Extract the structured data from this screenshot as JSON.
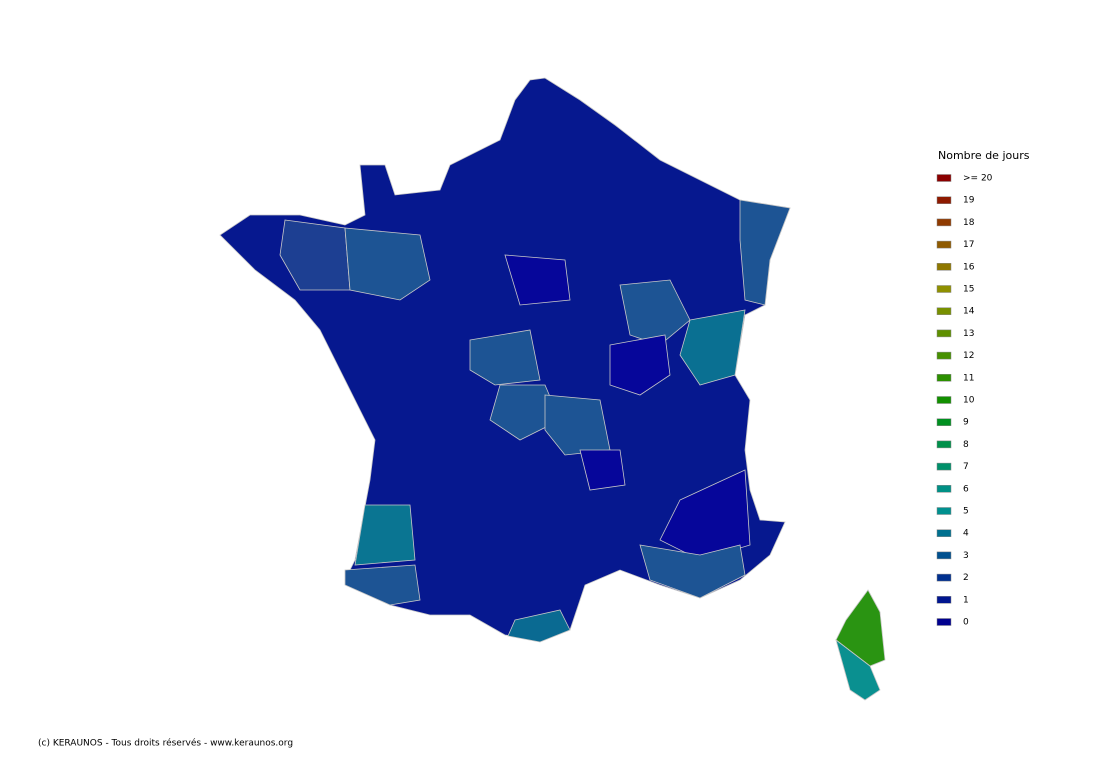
{
  "legend": {
    "title": "Nombre de jours",
    "items": [
      {
        "label": ">= 20",
        "color": "#8b0000"
      },
      {
        "label": "19",
        "color": "#8e1a00"
      },
      {
        "label": "18",
        "color": "#8f3a00"
      },
      {
        "label": "17",
        "color": "#8f5a00"
      },
      {
        "label": "16",
        "color": "#8f7800"
      },
      {
        "label": "15",
        "color": "#8f9000"
      },
      {
        "label": "14",
        "color": "#789000"
      },
      {
        "label": "13",
        "color": "#5e8f00"
      },
      {
        "label": "12",
        "color": "#469000"
      },
      {
        "label": "11",
        "color": "#2c9000"
      },
      {
        "label": "10",
        "color": "#129000"
      },
      {
        "label": "9",
        "color": "#009020"
      },
      {
        "label": "8",
        "color": "#00904a"
      },
      {
        "label": "7",
        "color": "#00906a"
      },
      {
        "label": "6",
        "color": "#009085"
      },
      {
        "label": "5",
        "color": "#00908f"
      },
      {
        "label": "4",
        "color": "#00708f"
      },
      {
        "label": "3",
        "color": "#00508f"
      },
      {
        "label": "2",
        "color": "#00308f"
      },
      {
        "label": "1",
        "color": "#00158f"
      },
      {
        "label": "0",
        "color": "#00008f"
      }
    ]
  },
  "footer": {
    "copyright": "(c) KERAUNOS - Tous droits réservés - www.keraunos.org"
  }
}
